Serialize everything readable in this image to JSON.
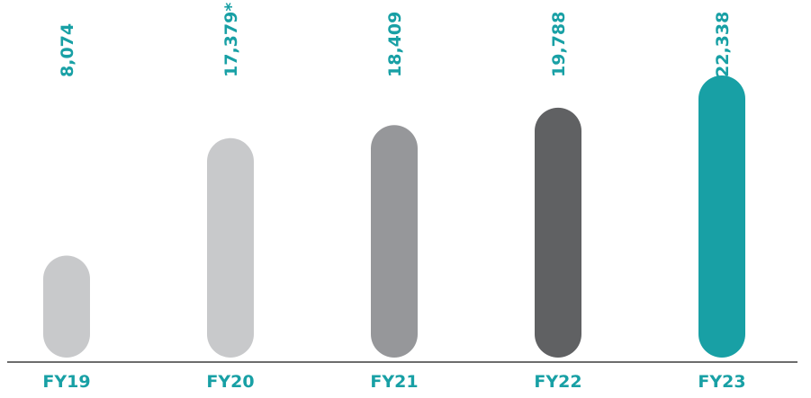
{
  "chart_data": {
    "type": "bar",
    "categories": [
      "FY19",
      "FY20",
      "FY21",
      "FY22",
      "FY23"
    ],
    "values": [
      8074,
      17379,
      18409,
      19788,
      22338
    ],
    "value_labels": [
      "8,074",
      "17,379*",
      "18,409",
      "19,788",
      "22,338"
    ],
    "ylim": [
      0,
      22338
    ],
    "grid": false,
    "legend": "none",
    "bar_colors": [
      "#c8c9cb",
      "#c8c9cb",
      "#96979a",
      "#606163",
      "#18a0a5"
    ],
    "label_color": "#18a0a5",
    "axis_color": "#3d3d3d"
  }
}
